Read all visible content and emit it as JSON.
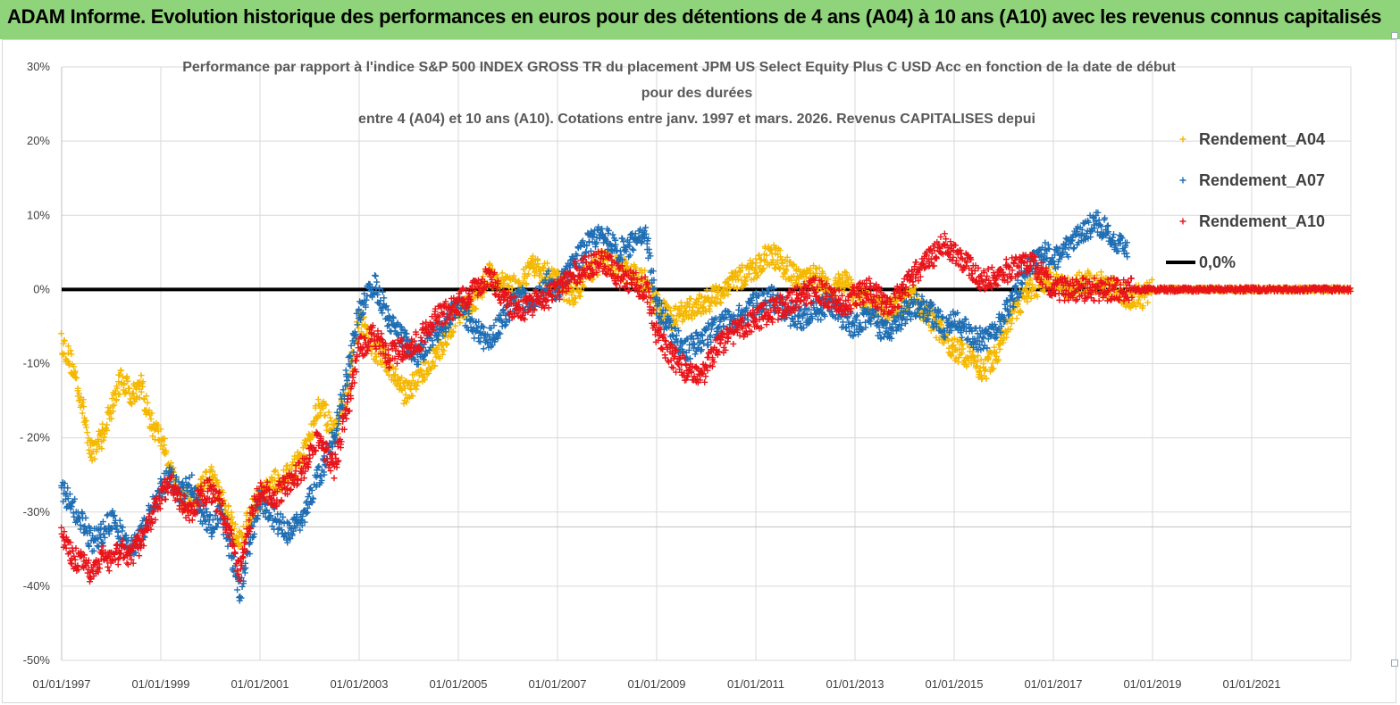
{
  "header": {
    "title": "ADAM Informe. Evolution historique des performances en euros pour des détentions de 4 ans (A04) à 10 ans (A10) avec les revenus connus capitalisés"
  },
  "chart_data": {
    "type": "scatter",
    "title_lines": [
      "Performance par rapport à l'indice S&P 500 INDEX GROSS TR  du placement JPM US Select Equity Plus C USD Acc en fonction de la date de début",
      "pour des durées",
      "entre 4 (A04) et 10 ans (A10). Cotations entre janv. 1997 et mars. 2026. Revenus CAPITALISES depui"
    ],
    "x_ticks": [
      "01/01/1997",
      "01/01/1999",
      "01/01/2001",
      "01/01/2003",
      "01/01/2005",
      "01/01/2007",
      "01/01/2009",
      "01/01/2011",
      "01/01/2013",
      "01/01/2015",
      "01/01/2017",
      "01/01/2019",
      "01/01/2021"
    ],
    "xlim": [
      1997.0,
      2023.0
    ],
    "y_ticks": [
      "30%",
      "20%",
      "10%",
      "0%",
      "-10%",
      "- 20%",
      "-30%",
      "-40%",
      "-50%"
    ],
    "ylim": [
      -50,
      30
    ],
    "grid": true,
    "legend_position": "right",
    "series": [
      {
        "name": "Rendement_A04",
        "color": "#f5b800",
        "marker": "+",
        "x": [
          1997.0,
          1997.2,
          1997.4,
          1997.6,
          1997.8,
          1998.0,
          1998.2,
          1998.4,
          1998.6,
          1998.8,
          1999.0,
          1999.2,
          1999.4,
          1999.6,
          1999.8,
          2000.0,
          2000.2,
          2000.4,
          2000.6,
          2000.8,
          2001.0,
          2001.3,
          2001.6,
          2001.9,
          2002.2,
          2002.5,
          2002.8,
          2003.0,
          2003.3,
          2003.6,
          2003.9,
          2004.2,
          2004.5,
          2004.8,
          2005.0,
          2005.3,
          2005.6,
          2005.9,
          2006.2,
          2006.5,
          2006.8,
          2007.0,
          2007.3,
          2007.6,
          2007.9,
          2008.2,
          2008.5,
          2008.8,
          2009.0,
          2009.3,
          2009.6,
          2009.9,
          2010.2,
          2010.5,
          2010.8,
          2011.0,
          2011.3,
          2011.6,
          2011.9,
          2012.2,
          2012.5,
          2012.8,
          2013.0,
          2013.3,
          2013.6,
          2013.9,
          2014.2,
          2014.5,
          2014.8,
          2015.0,
          2015.3,
          2015.6,
          2015.9,
          2016.2,
          2016.5,
          2016.8,
          2017.0,
          2017.3,
          2017.6,
          2017.9,
          2018.2,
          2018.5,
          2018.8,
          2019.0,
          2019.5,
          2020.0,
          2020.5,
          2021.0,
          2021.5,
          2022.0,
          2022.5,
          2023.0
        ],
        "y": [
          -7,
          -10,
          -15,
          -22,
          -20,
          -16,
          -12,
          -14,
          -13,
          -18,
          -20,
          -24,
          -28,
          -29,
          -27,
          -25,
          -28,
          -31,
          -34,
          -30,
          -28,
          -26,
          -25,
          -22,
          -15,
          -20,
          -12,
          -4,
          -8,
          -10,
          -14,
          -12,
          -9,
          -6,
          -3,
          -2,
          2,
          1,
          0,
          3,
          2,
          1,
          -1,
          2,
          4,
          3,
          2,
          1,
          -2,
          -4,
          -3,
          -2,
          -1,
          1,
          2,
          3,
          5,
          3,
          1,
          2,
          0,
          1,
          -1,
          -2,
          -3,
          -2,
          -1,
          -4,
          -6,
          -8,
          -9,
          -11,
          -8,
          -3,
          0,
          1,
          2,
          0,
          1,
          1,
          0,
          -1,
          -1,
          0,
          0,
          0,
          0,
          0,
          0,
          0,
          0,
          0
        ]
      },
      {
        "name": "Rendement_A07",
        "color": "#1f6eb4",
        "marker": "+",
        "x": [
          1997.0,
          1997.2,
          1997.4,
          1997.6,
          1997.8,
          1998.0,
          1998.2,
          1998.4,
          1998.6,
          1998.8,
          1999.0,
          1999.2,
          1999.4,
          1999.6,
          1999.8,
          2000.0,
          2000.2,
          2000.4,
          2000.6,
          2000.8,
          2001.0,
          2001.3,
          2001.6,
          2001.9,
          2002.2,
          2002.5,
          2002.8,
          2003.0,
          2003.3,
          2003.6,
          2003.9,
          2004.2,
          2004.5,
          2004.8,
          2005.0,
          2005.3,
          2005.6,
          2005.9,
          2006.2,
          2006.5,
          2006.8,
          2007.0,
          2007.3,
          2007.6,
          2007.9,
          2008.2,
          2008.5,
          2008.8,
          2009.0,
          2009.3,
          2009.6,
          2009.9,
          2010.2,
          2010.5,
          2010.8,
          2011.0,
          2011.3,
          2011.6,
          2011.9,
          2012.2,
          2012.5,
          2012.8,
          2013.0,
          2013.3,
          2013.6,
          2013.9,
          2014.2,
          2014.5,
          2014.8,
          2015.0,
          2015.3,
          2015.6,
          2015.9,
          2016.2,
          2016.5,
          2016.8,
          2017.0,
          2017.3,
          2017.6,
          2017.9,
          2018.2,
          2018.5
        ],
        "y": [
          -27,
          -29,
          -31,
          -34,
          -33,
          -31,
          -33,
          -35,
          -33,
          -30,
          -27,
          -25,
          -28,
          -26,
          -30,
          -32,
          -30,
          -35,
          -41,
          -34,
          -28,
          -31,
          -33,
          -30,
          -25,
          -20,
          -10,
          -3,
          1,
          -4,
          -7,
          -9,
          -6,
          -4,
          -2,
          -5,
          -7,
          -4,
          -1,
          -2,
          1,
          0,
          3,
          6,
          8,
          5,
          6,
          7,
          -2,
          -6,
          -8,
          -7,
          -5,
          -4,
          -3,
          -2,
          -1,
          -3,
          -4,
          -3,
          -2,
          -4,
          -5,
          -3,
          -6,
          -4,
          -2,
          -3,
          -5,
          -4,
          -6,
          -7,
          -5,
          -1,
          3,
          5,
          4,
          6,
          8,
          9,
          7,
          5
        ]
      },
      {
        "name": "Rendement_A10",
        "color": "#e8141a",
        "marker": "+",
        "x": [
          1997.0,
          1997.2,
          1997.4,
          1997.6,
          1997.8,
          1998.0,
          1998.2,
          1998.4,
          1998.6,
          1998.8,
          1999.0,
          1999.2,
          1999.4,
          1999.6,
          1999.8,
          2000.0,
          2000.2,
          2000.4,
          2000.6,
          2000.8,
          2001.0,
          2001.3,
          2001.6,
          2001.9,
          2002.2,
          2002.5,
          2002.8,
          2003.0,
          2003.3,
          2003.6,
          2003.9,
          2004.2,
          2004.5,
          2004.8,
          2005.0,
          2005.3,
          2005.6,
          2005.9,
          2006.2,
          2006.5,
          2006.8,
          2007.0,
          2007.3,
          2007.6,
          2007.9,
          2008.2,
          2008.5,
          2008.8,
          2009.0,
          2009.3,
          2009.6,
          2009.9,
          2010.2,
          2010.5,
          2010.8,
          2011.0,
          2011.3,
          2011.6,
          2011.9,
          2012.2,
          2012.5,
          2012.8,
          2013.0,
          2013.3,
          2013.6,
          2013.9,
          2014.2,
          2014.5,
          2014.8,
          2015.0,
          2015.3,
          2015.6,
          2015.9,
          2016.2,
          2016.5,
          2016.8,
          2017.0,
          2017.5,
          2018.0,
          2018.5,
          2019.0,
          2019.5,
          2020.0,
          2020.5,
          2021.0,
          2021.5,
          2022.0,
          2022.5,
          2023.0
        ],
        "y": [
          -33,
          -36,
          -37,
          -38,
          -36,
          -37,
          -35,
          -36,
          -34,
          -31,
          -28,
          -26,
          -29,
          -30,
          -28,
          -27,
          -29,
          -33,
          -38,
          -31,
          -27,
          -28,
          -26,
          -24,
          -20,
          -24,
          -15,
          -8,
          -6,
          -9,
          -8,
          -7,
          -4,
          -3,
          -2,
          0,
          2,
          -1,
          -3,
          -2,
          -1,
          0,
          2,
          3,
          4,
          2,
          1,
          0,
          -6,
          -9,
          -11,
          -12,
          -8,
          -6,
          -5,
          -4,
          -3,
          -2,
          -1,
          0,
          -1,
          -2,
          -1,
          0,
          -2,
          -1,
          2,
          4,
          6,
          5,
          3,
          1,
          2,
          3,
          4,
          2,
          0,
          0,
          0,
          0,
          0,
          0,
          0,
          0,
          0,
          0,
          0,
          0,
          0
        ]
      },
      {
        "name": "0,0%",
        "color": "#000000",
        "marker": "line",
        "x": [
          1997.0,
          2023.0
        ],
        "y": [
          0,
          0
        ]
      }
    ]
  }
}
